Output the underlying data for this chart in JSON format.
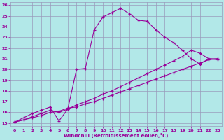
{
  "xlabel": "Windchill (Refroidissement éolien,°C)",
  "ylabel": "",
  "bg_color": "#b2e8e8",
  "grid_color": "#9999bb",
  "line_color": "#990099",
  "xlim": [
    -0.5,
    23.5
  ],
  "ylim": [
    14.7,
    26.3
  ],
  "xticks": [
    0,
    1,
    2,
    3,
    4,
    5,
    6,
    7,
    8,
    9,
    10,
    11,
    12,
    13,
    14,
    15,
    16,
    17,
    18,
    19,
    20,
    21,
    22,
    23
  ],
  "yticks": [
    15,
    16,
    17,
    18,
    19,
    20,
    21,
    22,
    23,
    24,
    25,
    26
  ],
  "line1_x": [
    0,
    1,
    2,
    3,
    4,
    5,
    6,
    7,
    8,
    9,
    10,
    11,
    12,
    13,
    14,
    15,
    16,
    17,
    18,
    19,
    20,
    21,
    22,
    23
  ],
  "line1_y": [
    15.1,
    15.5,
    15.9,
    16.2,
    16.5,
    15.2,
    16.3,
    20.0,
    20.1,
    23.7,
    24.9,
    25.3,
    25.7,
    25.2,
    24.6,
    24.5,
    23.7,
    23.0,
    22.5,
    21.8,
    21.0,
    20.5,
    21.0,
    21.0
  ],
  "line2_x": [
    0,
    1,
    2,
    3,
    4,
    5,
    6,
    7,
    8,
    9,
    10,
    11,
    12,
    13,
    14,
    15,
    16,
    17,
    18,
    19,
    20,
    21,
    22,
    23
  ],
  "line2_y": [
    15.1,
    15.3,
    15.5,
    15.7,
    16.0,
    16.1,
    16.4,
    16.5,
    16.8,
    17.0,
    17.3,
    17.6,
    17.9,
    18.2,
    18.5,
    18.8,
    19.1,
    19.4,
    19.7,
    20.0,
    20.3,
    20.6,
    20.9,
    21.0
  ],
  "line3_x": [
    0,
    1,
    2,
    3,
    4,
    5,
    6,
    7,
    8,
    9,
    10,
    11,
    12,
    13,
    14,
    15,
    16,
    17,
    18,
    19,
    20,
    21,
    22,
    23
  ],
  "line3_y": [
    15.1,
    15.3,
    15.6,
    15.9,
    16.2,
    16.0,
    16.3,
    16.7,
    17.0,
    17.3,
    17.7,
    18.0,
    18.4,
    18.8,
    19.2,
    19.6,
    20.0,
    20.4,
    20.8,
    21.2,
    21.8,
    21.5,
    21.0,
    20.9
  ]
}
